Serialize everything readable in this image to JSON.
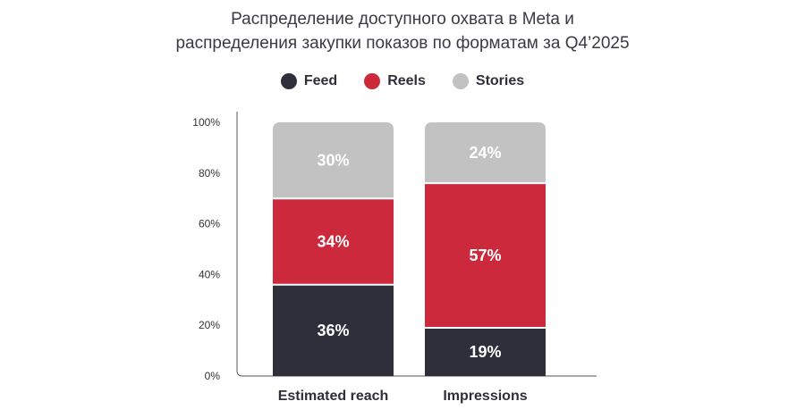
{
  "chart_data": {
    "type": "bar",
    "stacked": true,
    "title_lines": [
      "Распределение доступного охвата в Meta и",
      "распределения закупки показов по форматам за Q4’2025"
    ],
    "categories": [
      "Estimated reach",
      "Impressions"
    ],
    "series": [
      {
        "name": "Feed",
        "color": "#2f2f3b",
        "values": [
          36,
          19
        ],
        "labels": [
          "36%",
          "19%"
        ]
      },
      {
        "name": "Reels",
        "color": "#cc2a3c",
        "values": [
          34,
          57
        ],
        "labels": [
          "34%",
          "57%"
        ]
      },
      {
        "name": "Stories",
        "color": "#c2c2c2",
        "values": [
          30,
          24
        ],
        "labels": [
          "30%",
          "24%"
        ]
      }
    ],
    "ylim": [
      0,
      100
    ],
    "yticks": [
      "0%",
      "20%",
      "40%",
      "60%",
      "80%",
      "100%"
    ],
    "legend_position": "top-center",
    "grid": false
  }
}
